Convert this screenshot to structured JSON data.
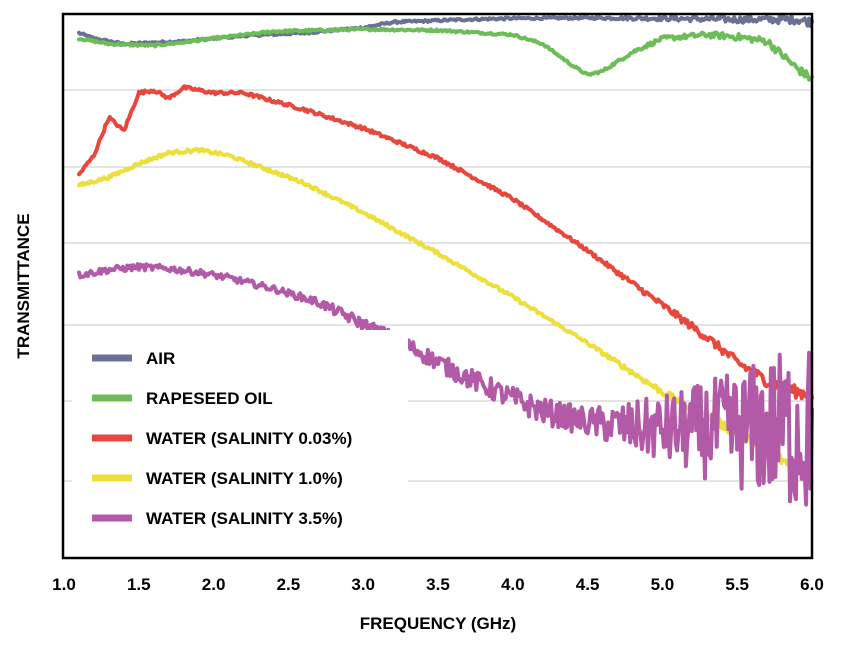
{
  "chart_data": {
    "type": "line",
    "title": "",
    "xlabel": "FREQUENCY (GHz)",
    "ylabel": "TRANSMITTANCE",
    "xlim": [
      1.1,
      6.0
    ],
    "ylim": [
      0,
      1
    ],
    "x_ticks": [
      "1.0",
      "1.5",
      "2.0",
      "2.5",
      "3.0",
      "3.5",
      "4.0",
      "4.5",
      "5.0",
      "5.5",
      "6.0"
    ],
    "x_tick_values": [
      1.0,
      1.5,
      2.0,
      2.5,
      3.0,
      3.5,
      4.0,
      4.5,
      5.0,
      5.5,
      6.0
    ],
    "y_tick_labels_shown": false,
    "grid": "horizontal",
    "legend_placement": "bottom-left",
    "series": [
      {
        "name": "AIR",
        "color": "#6a7193",
        "noise": 0.002,
        "x": [
          1.1,
          1.2,
          1.4,
          1.8,
          2.2,
          2.6,
          3.0,
          3.2,
          3.5,
          3.7,
          4.0,
          4.5,
          5.0,
          5.5,
          5.9,
          6.0
        ],
        "y": [
          0.965,
          0.955,
          0.945,
          0.95,
          0.96,
          0.965,
          0.975,
          0.985,
          0.988,
          0.99,
          0.992,
          0.993,
          0.992,
          0.99,
          0.99,
          0.985
        ]
      },
      {
        "name": "RAPESEED OIL",
        "color": "#6cbd57",
        "noise": 0.002,
        "x": [
          1.1,
          1.3,
          1.6,
          1.8,
          2.0,
          2.4,
          3.0,
          3.5,
          4.0,
          4.2,
          4.4,
          4.5,
          4.6,
          4.8,
          5.0,
          5.3,
          5.5,
          5.7,
          5.9,
          6.0
        ],
        "y": [
          0.955,
          0.945,
          0.942,
          0.948,
          0.955,
          0.968,
          0.972,
          0.97,
          0.962,
          0.945,
          0.905,
          0.888,
          0.895,
          0.93,
          0.955,
          0.962,
          0.958,
          0.95,
          0.9,
          0.88
        ]
      },
      {
        "name": "WATER (SALINITY 0.03%)",
        "color": "#e8473e",
        "noise": 0.003,
        "x": [
          1.1,
          1.2,
          1.3,
          1.4,
          1.5,
          1.6,
          1.7,
          1.8,
          2.0,
          2.2,
          2.4,
          2.6,
          3.0,
          3.5,
          4.0,
          4.5,
          5.0,
          5.3,
          5.5,
          5.7,
          5.9,
          6.0
        ],
        "y": [
          0.705,
          0.74,
          0.81,
          0.785,
          0.855,
          0.86,
          0.845,
          0.865,
          0.855,
          0.855,
          0.84,
          0.825,
          0.79,
          0.735,
          0.66,
          0.565,
          0.465,
          0.405,
          0.36,
          0.325,
          0.305,
          0.3
        ]
      },
      {
        "name": "WATER (SALINITY 1.0%)",
        "color": "#ecdf3c",
        "noise": 0.003,
        "x": [
          1.1,
          1.3,
          1.5,
          1.7,
          1.9,
          2.1,
          2.3,
          2.6,
          3.0,
          3.5,
          4.0,
          4.5,
          5.0,
          5.5,
          5.8,
          6.0
        ],
        "y": [
          0.685,
          0.7,
          0.725,
          0.745,
          0.75,
          0.74,
          0.72,
          0.69,
          0.635,
          0.56,
          0.48,
          0.395,
          0.305,
          0.23,
          0.18,
          0.15
        ]
      },
      {
        "name": "WATER (SALINITY 3.5%)",
        "color": "#b25aa8",
        "noise": 0.006,
        "x": [
          1.1,
          1.3,
          1.5,
          1.7,
          1.9,
          2.1,
          2.4,
          2.7,
          3.0,
          3.3,
          3.6,
          3.9,
          4.2,
          4.5,
          4.8,
          5.1,
          5.5,
          5.8,
          6.0
        ],
        "y": [
          0.52,
          0.53,
          0.535,
          0.532,
          0.525,
          0.515,
          0.495,
          0.47,
          0.43,
          0.39,
          0.345,
          0.305,
          0.27,
          0.25,
          0.24,
          0.235,
          0.235,
          0.24,
          0.23
        ]
      }
    ]
  }
}
